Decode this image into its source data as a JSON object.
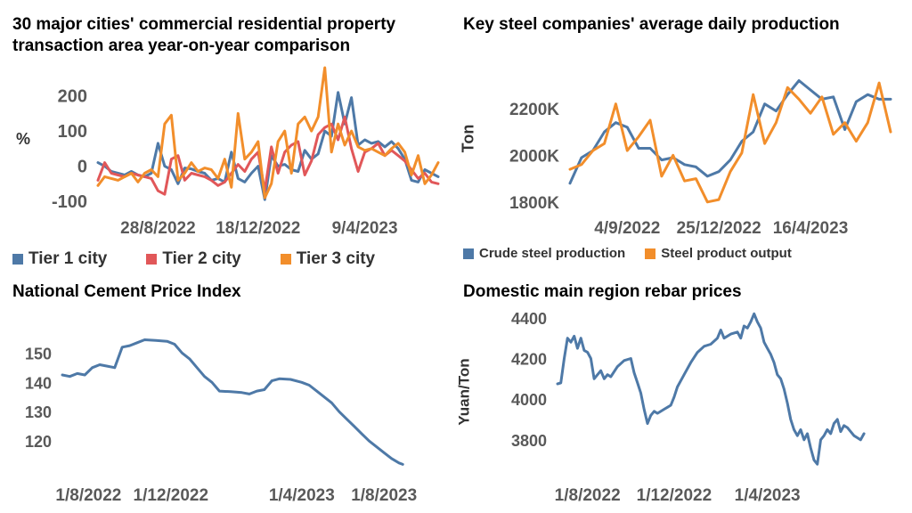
{
  "colors": {
    "tier1": "#4e79a7",
    "tier2": "#e15759",
    "tier3": "#f28e2b",
    "text": "#595959",
    "line": "#4e79a7"
  },
  "chart_data": [
    {
      "type": "line",
      "title": "30 major cities' commercial residential property transaction area year-on-year comparison",
      "ylabel": "%",
      "ylim": [
        -115,
        275
      ],
      "yticks": [
        -100,
        0,
        100,
        200
      ],
      "xticks": [
        {
          "i": 9,
          "label": "28/8/2022"
        },
        {
          "i": 24,
          "label": "18/12/2022"
        },
        {
          "i": 40,
          "label": "9/4/2023"
        }
      ],
      "series": [
        {
          "name": "Tier 1 city",
          "color": "#4e79a7",
          "values": [
            10,
            0,
            -15,
            -20,
            -25,
            -15,
            -25,
            -30,
            -20,
            65,
            0,
            -10,
            -50,
            -5,
            -8,
            -15,
            -20,
            -40,
            -35,
            -45,
            40,
            -35,
            -45,
            -20,
            0,
            -95,
            30,
            0,
            5,
            -10,
            -15,
            45,
            20,
            35,
            100,
            85,
            210,
            120,
            195,
            60,
            75,
            65,
            70,
            55,
            70,
            50,
            20,
            -40,
            -45,
            -10,
            -20,
            -30
          ]
        },
        {
          "name": "Tier 2 city",
          "color": "#e15759",
          "values": [
            -40,
            10,
            -20,
            -25,
            -30,
            -20,
            -25,
            -30,
            -35,
            -70,
            -80,
            20,
            30,
            -40,
            -20,
            -25,
            -30,
            -40,
            -55,
            -45,
            -20,
            5,
            -15,
            20,
            40,
            -70,
            55,
            -20,
            40,
            60,
            70,
            -25,
            15,
            90,
            110,
            120,
            75,
            140,
            50,
            -15,
            40,
            50,
            65,
            30,
            45,
            30,
            15,
            -10,
            -35,
            -20,
            -45,
            -50
          ]
        },
        {
          "name": "Tier 3 city",
          "color": "#f28e2b",
          "values": [
            -55,
            -30,
            -35,
            -40,
            -30,
            -20,
            -45,
            -20,
            -10,
            -30,
            120,
            145,
            -40,
            -20,
            10,
            -15,
            -5,
            -10,
            -35,
            20,
            -60,
            150,
            20,
            40,
            70,
            -90,
            -50,
            70,
            100,
            -20,
            120,
            140,
            100,
            140,
            280,
            40,
            120,
            60,
            100,
            55,
            45,
            50,
            40,
            30,
            50,
            65,
            40,
            -25,
            30,
            -50,
            -25,
            10
          ]
        }
      ]
    },
    {
      "type": "line",
      "title": "Key steel companies' average daily production",
      "ylabel": "Ton",
      "ylim": [
        1780,
        2360
      ],
      "yticks": [
        {
          "v": 1800,
          "label": "1800K"
        },
        {
          "v": 2000,
          "label": "2000K"
        },
        {
          "v": 2200,
          "label": "2200K"
        }
      ],
      "xticks": [
        {
          "i": 5,
          "label": "4/9/2022"
        },
        {
          "i": 13,
          "label": "25/12/2022"
        },
        {
          "i": 21,
          "label": "16/4/2023"
        }
      ],
      "series": [
        {
          "name": "Crude steel production",
          "color": "#4e79a7",
          "values": [
            1880,
            1990,
            2020,
            2100,
            2140,
            2120,
            2030,
            2030,
            1980,
            1990,
            1960,
            1950,
            1910,
            1930,
            1980,
            2060,
            2100,
            2220,
            2190,
            2260,
            2320,
            2280,
            2240,
            2250,
            2110,
            2230,
            2260,
            2240,
            2240
          ]
        },
        {
          "name": "Steel product output",
          "color": "#f28e2b",
          "values": [
            1940,
            1960,
            2020,
            2050,
            2220,
            2020,
            2080,
            2150,
            1910,
            2000,
            1890,
            1900,
            1800,
            1810,
            1930,
            2010,
            2260,
            2050,
            2140,
            2290,
            2240,
            2180,
            2250,
            2090,
            2140,
            2060,
            2140,
            2310,
            2100
          ]
        }
      ]
    },
    {
      "type": "line",
      "title": "National Cement Price Index",
      "ylim": [
        110,
        158
      ],
      "yticks": [
        120,
        130,
        140,
        150
      ],
      "xticks": [
        {
          "t": 0.07,
          "label": "1/8/2022"
        },
        {
          "t": 0.29,
          "label": "1/12/2022"
        },
        {
          "t": 0.64,
          "label": "1/4/2023"
        },
        {
          "t": 0.86,
          "label": "1/8/2023"
        }
      ],
      "series": [
        {
          "name": "",
          "color": "#4e79a7",
          "points": [
            [
              0,
              142.5
            ],
            [
              0.02,
              142
            ],
            [
              0.04,
              143
            ],
            [
              0.06,
              142.5
            ],
            [
              0.08,
              145
            ],
            [
              0.1,
              146
            ],
            [
              0.12,
              145.5
            ],
            [
              0.14,
              145
            ],
            [
              0.16,
              152
            ],
            [
              0.18,
              152.5
            ],
            [
              0.2,
              153.5
            ],
            [
              0.22,
              154.5
            ],
            [
              0.25,
              154.3
            ],
            [
              0.28,
              154
            ],
            [
              0.3,
              153
            ],
            [
              0.32,
              150
            ],
            [
              0.34,
              148
            ],
            [
              0.36,
              145
            ],
            [
              0.38,
              142
            ],
            [
              0.4,
              140
            ],
            [
              0.42,
              137
            ],
            [
              0.45,
              136.8
            ],
            [
              0.48,
              136.5
            ],
            [
              0.5,
              136
            ],
            [
              0.52,
              137
            ],
            [
              0.54,
              137.5
            ],
            [
              0.56,
              140.5
            ],
            [
              0.58,
              141.2
            ],
            [
              0.61,
              141
            ],
            [
              0.64,
              140
            ],
            [
              0.66,
              139
            ],
            [
              0.68,
              137
            ],
            [
              0.7,
              135
            ],
            [
              0.72,
              133
            ],
            [
              0.74,
              130
            ],
            [
              0.76,
              127.5
            ],
            [
              0.78,
              125
            ],
            [
              0.8,
              122.5
            ],
            [
              0.82,
              120
            ],
            [
              0.84,
              118
            ],
            [
              0.86,
              116
            ],
            [
              0.88,
              114
            ],
            [
              0.9,
              112.5
            ],
            [
              0.91,
              112
            ]
          ]
        }
      ]
    },
    {
      "type": "line",
      "title": "Domestic main region rebar prices",
      "ylabel": "Yuan/Ton",
      "ylim": [
        3650,
        4430
      ],
      "yticks": [
        3800,
        4000,
        4200,
        4400
      ],
      "xticks": [
        {
          "t": 0.09,
          "label": "1/8/2022"
        },
        {
          "t": 0.35,
          "label": "1/12/2022"
        },
        {
          "t": 0.63,
          "label": "1/4/2023"
        }
      ],
      "series": [
        {
          "name": "",
          "color": "#4e79a7",
          "points": [
            [
              0,
              4075
            ],
            [
              0.01,
              4080
            ],
            [
              0.02,
              4200
            ],
            [
              0.03,
              4300
            ],
            [
              0.04,
              4280
            ],
            [
              0.05,
              4310
            ],
            [
              0.06,
              4250
            ],
            [
              0.07,
              4300
            ],
            [
              0.08,
              4240
            ],
            [
              0.09,
              4230
            ],
            [
              0.1,
              4200
            ],
            [
              0.11,
              4100
            ],
            [
              0.12,
              4120
            ],
            [
              0.13,
              4140
            ],
            [
              0.14,
              4100
            ],
            [
              0.15,
              4120
            ],
            [
              0.16,
              4110
            ],
            [
              0.18,
              4160
            ],
            [
              0.2,
              4190
            ],
            [
              0.22,
              4200
            ],
            [
              0.23,
              4130
            ],
            [
              0.24,
              4080
            ],
            [
              0.25,
              4030
            ],
            [
              0.26,
              3950
            ],
            [
              0.27,
              3880
            ],
            [
              0.28,
              3920
            ],
            [
              0.29,
              3940
            ],
            [
              0.3,
              3930
            ],
            [
              0.32,
              3950
            ],
            [
              0.33,
              3960
            ],
            [
              0.34,
              3970
            ],
            [
              0.35,
              4010
            ],
            [
              0.36,
              4060
            ],
            [
              0.38,
              4120
            ],
            [
              0.4,
              4180
            ],
            [
              0.42,
              4230
            ],
            [
              0.44,
              4260
            ],
            [
              0.46,
              4270
            ],
            [
              0.48,
              4300
            ],
            [
              0.49,
              4340
            ],
            [
              0.5,
              4300
            ],
            [
              0.52,
              4320
            ],
            [
              0.54,
              4330
            ],
            [
              0.55,
              4300
            ],
            [
              0.56,
              4360
            ],
            [
              0.57,
              4350
            ],
            [
              0.58,
              4380
            ],
            [
              0.59,
              4420
            ],
            [
              0.6,
              4380
            ],
            [
              0.61,
              4350
            ],
            [
              0.62,
              4280
            ],
            [
              0.63,
              4250
            ],
            [
              0.64,
              4220
            ],
            [
              0.65,
              4180
            ],
            [
              0.66,
              4120
            ],
            [
              0.67,
              4100
            ],
            [
              0.68,
              4050
            ],
            [
              0.69,
              3980
            ],
            [
              0.7,
              3900
            ],
            [
              0.71,
              3850
            ],
            [
              0.72,
              3820
            ],
            [
              0.73,
              3850
            ],
            [
              0.74,
              3800
            ],
            [
              0.75,
              3830
            ],
            [
              0.76,
              3760
            ],
            [
              0.77,
              3700
            ],
            [
              0.78,
              3680
            ],
            [
              0.79,
              3800
            ],
            [
              0.8,
              3820
            ],
            [
              0.81,
              3850
            ],
            [
              0.82,
              3830
            ],
            [
              0.83,
              3880
            ],
            [
              0.84,
              3900
            ],
            [
              0.85,
              3840
            ],
            [
              0.86,
              3870
            ],
            [
              0.87,
              3860
            ],
            [
              0.88,
              3840
            ],
            [
              0.89,
              3820
            ],
            [
              0.9,
              3810
            ],
            [
              0.91,
              3800
            ],
            [
              0.92,
              3830
            ]
          ]
        }
      ]
    }
  ]
}
